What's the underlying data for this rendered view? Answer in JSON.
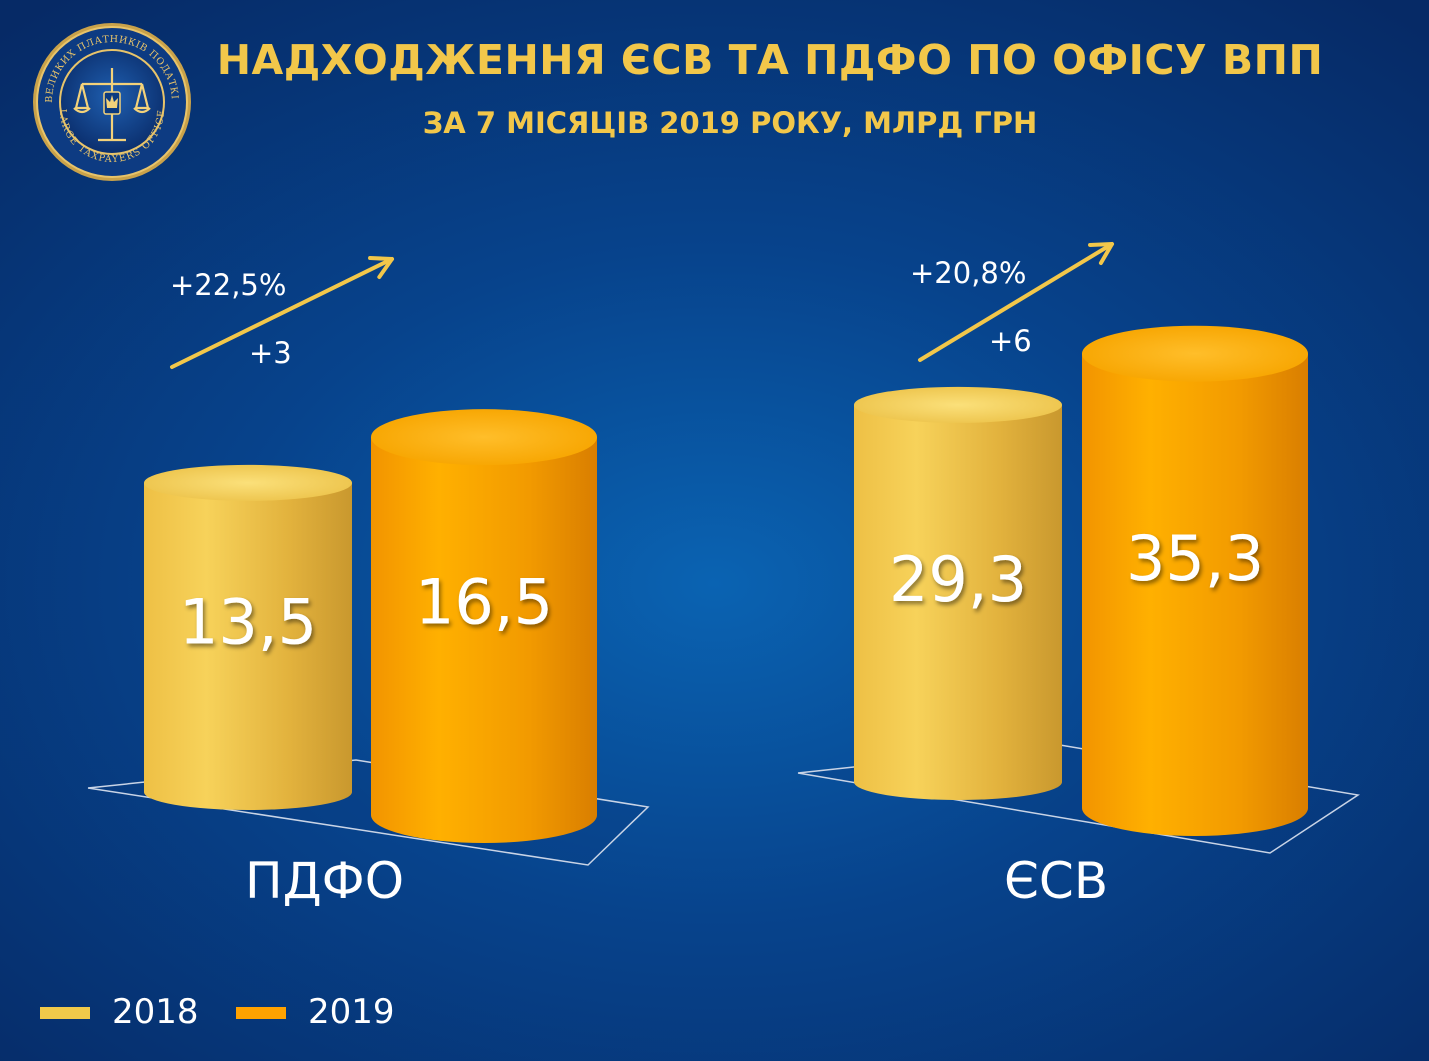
{
  "header": {
    "title": "НАДХОДЖЕННЯ ЄСВ ТА ПДФО ПО ОФІСУ ВПП",
    "subtitle": "ЗА 7 МІСЯЦІВ 2019 РОКУ, МЛРД ГРН"
  },
  "logo": {
    "ring_text_top": "ОФІС ВЕЛИКИХ ПЛАТНИКІВ ПОДАТКІВ ДФС",
    "ring_text_bottom": "LARGE TAXPAYERS OFFICE",
    "icon": "scales-of-justice-emblem"
  },
  "chart_data": {
    "type": "bar",
    "style": "3d-cylinder",
    "title": "НАДХОДЖЕННЯ ЄСВ ТА ПДФО ПО ОФІСУ ВПП",
    "subtitle": "ЗА 7 МІСЯЦІВ 2019 РОКУ, МЛРД ГРН",
    "categories": [
      "ПДФО",
      "ЄСВ"
    ],
    "series": [
      {
        "name": "2018",
        "values": [
          13.5,
          29.3
        ],
        "labels": [
          "13,5",
          "29,3"
        ],
        "color": "#f0c94a"
      },
      {
        "name": "2019",
        "values": [
          16.5,
          35.3
        ],
        "labels": [
          "16,5",
          "35,3"
        ],
        "color": "#ffa200"
      }
    ],
    "annotations": [
      {
        "category": "ПДФО",
        "percent": "+22,5%",
        "delta": "+3"
      },
      {
        "category": "ЄСВ",
        "percent": "+20,8%",
        "delta": "+6"
      }
    ],
    "legend_position": "bottom-left",
    "grid": false
  },
  "colors": {
    "background": "#07438c",
    "title": "#f2c74a",
    "bar_2018": "#f0c94a",
    "bar_2019": "#ffa200",
    "arrow": "#f2c74a",
    "text": "#ffffff"
  }
}
